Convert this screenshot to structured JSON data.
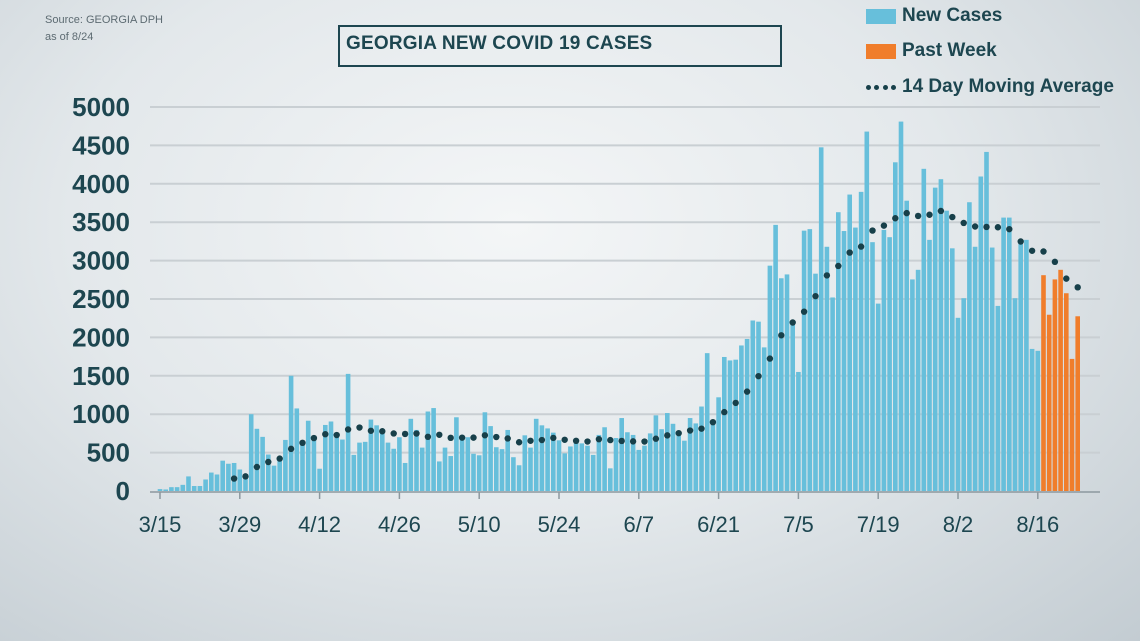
{
  "source_line1": "Source: GEORGIA DPH",
  "source_line2": "as of 8/24",
  "chart_data": {
    "type": "bar",
    "title": "GEORGIA NEW COVID 19 CASES",
    "xlabel": "",
    "ylabel": "",
    "ylim": [
      0,
      5000
    ],
    "yticks": [
      0,
      500,
      1000,
      1500,
      2000,
      2500,
      3000,
      3500,
      4000,
      4500,
      5000
    ],
    "xtick_labels": [
      "3/15",
      "3/29",
      "4/12",
      "4/26",
      "5/10",
      "5/24",
      "6/7",
      "6/21",
      "7/5",
      "7/19",
      "8/2",
      "8/16"
    ],
    "xtick_interval_days": 14,
    "start_date": "3/15",
    "end_date": "8/23",
    "grid": true,
    "legend_placement": "top-right",
    "legend": [
      "New Cases",
      "Past Week",
      "14 Day Moving Average"
    ],
    "colors": {
      "new_cases": "#67bfdb",
      "past_week": "#f07d2b",
      "moving_average": "#17404a"
    },
    "moving_average_window": 14,
    "series": [
      {
        "name": "New Cases",
        "values": [
          25,
          20,
          50,
          50,
          80,
          190,
          65,
          65,
          150,
          240,
          215,
          395,
          355,
          365,
          280,
          165,
          1000,
          810,
          705,
          475,
          330,
          420,
          665,
          1500,
          1075,
          640,
          915,
          670,
          290,
          860,
          905,
          755,
          670,
          1525,
          470,
          630,
          640,
          930,
          855,
          775,
          630,
          550,
          700,
          365,
          940,
          795,
          565,
          1035,
          1080,
          385,
          565,
          455,
          960,
          700,
          700,
          485,
          465,
          1025,
          845,
          570,
          545,
          795,
          440,
          335,
          725,
          565,
          940,
          855,
          815,
          760,
          660,
          490,
          580,
          645,
          620,
          590,
          470,
          730,
          830,
          295,
          690,
          950,
          765,
          730,
          535,
          590,
          750,
          985,
          805,
          1015,
          875,
          730,
          655,
          950,
          880,
          1100,
          1795,
          880,
          1220,
          1745,
          1700,
          1710,
          1895,
          1980,
          2220,
          2205,
          1870,
          2934,
          3465,
          2770,
          2820,
          2180,
          1550,
          3390,
          3410,
          2830,
          4475,
          3180,
          2520,
          3630,
          3385,
          3860,
          3430,
          3895,
          4680,
          3240,
          2440,
          3400,
          3305,
          4280,
          4810,
          3780,
          2755,
          2880,
          4195,
          3270,
          3950,
          4060,
          3650,
          3160,
          2255,
          2510,
          3760,
          3180,
          4095,
          4415,
          3170,
          2410,
          3560,
          3560,
          2510,
          3245,
          3270,
          1850,
          1825
        ]
      },
      {
        "name": "Past Week",
        "values": [
          2810,
          2295,
          2755,
          2880,
          2575,
          1720,
          2275
        ]
      }
    ]
  }
}
